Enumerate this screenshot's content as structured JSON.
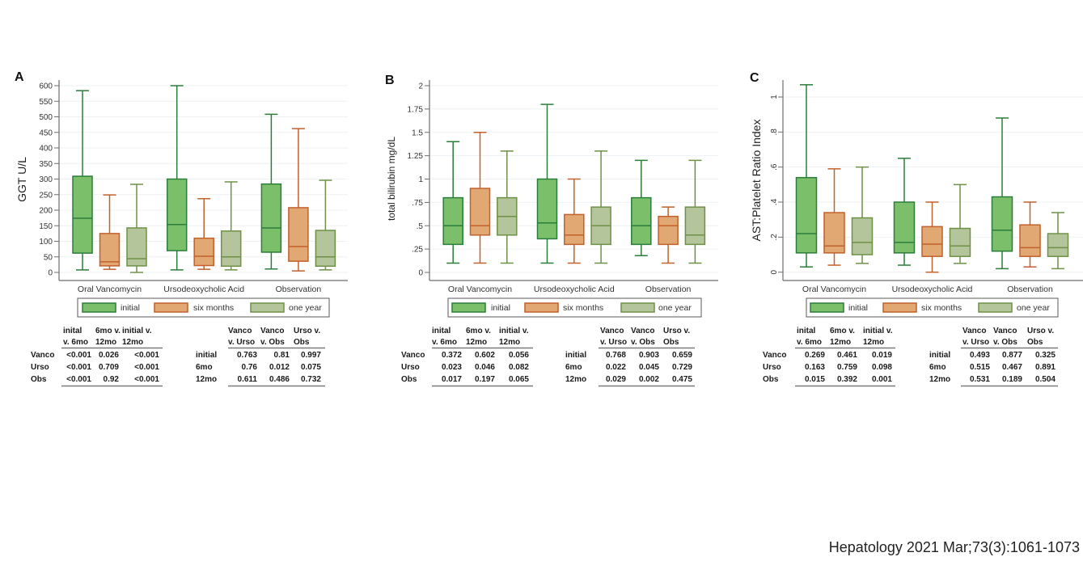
{
  "chart_data": [
    {
      "panel": "A",
      "type": "boxplot",
      "title": "",
      "xlabel": "",
      "ylabel": "GGT U/L",
      "ylim": [
        -26,
        628
      ],
      "grid": true,
      "legend_position": "bottom",
      "y_ticks": [
        0,
        50,
        100,
        150,
        200,
        250,
        300,
        350,
        400,
        450,
        500,
        550,
        600
      ],
      "y_tick_labels": [
        "0",
        "50",
        "100",
        "150",
        "200",
        "250",
        "300",
        "350",
        "400",
        "450",
        "500",
        "550",
        "600"
      ],
      "categories": [
        "Oral Vancomycin",
        "Ursodeoxycholic Acid",
        "Observation"
      ],
      "series": [
        {
          "name": "initial",
          "fill": "#7cbf6b",
          "stroke": "#2b7d3a",
          "boxes": [
            {
              "min": 8,
              "q1": 62,
              "median": 174,
              "q3": 309,
              "max": 584
            },
            {
              "min": 8,
              "q1": 70,
              "median": 154,
              "q3": 300,
              "max": 600
            },
            {
              "min": 11,
              "q1": 65,
              "median": 143,
              "q3": 284,
              "max": 508
            }
          ]
        },
        {
          "name": "six months",
          "fill": "#e2a873",
          "stroke": "#c1612c",
          "boxes": [
            {
              "min": 10,
              "q1": 21,
              "median": 34,
              "q3": 125,
              "max": 249
            },
            {
              "min": 10,
              "q1": 22,
              "median": 52,
              "q3": 110,
              "max": 237
            },
            {
              "min": 5,
              "q1": 36,
              "median": 83,
              "q3": 208,
              "max": 462
            }
          ]
        },
        {
          "name": "one year",
          "fill": "#b4c49b",
          "stroke": "#6f9147",
          "boxes": [
            {
              "min": 0,
              "q1": 21,
              "median": 44,
              "q3": 143,
              "max": 283
            },
            {
              "min": 8,
              "q1": 20,
              "median": 50,
              "q3": 133,
              "max": 291
            },
            {
              "min": 8,
              "q1": 20,
              "median": 50,
              "q3": 135,
              "max": 296
            }
          ]
        }
      ]
    },
    {
      "panel": "B",
      "type": "boxplot",
      "title": "",
      "xlabel": "",
      "ylabel": "total bilirubin mg/dL",
      "ylim": [
        -0.09,
        2.1
      ],
      "grid": true,
      "legend_position": "bottom",
      "y_ticks": [
        0,
        0.25,
        0.5,
        0.75,
        1,
        1.25,
        1.5,
        1.75,
        2
      ],
      "y_tick_labels": [
        "0",
        ".25",
        ".5",
        ".75",
        "1",
        "1.25",
        "1.5",
        "1.75",
        "2"
      ],
      "categories": [
        "Oral Vancomycin",
        "Ursodeoxycholic Acid",
        "Observation"
      ],
      "series": [
        {
          "name": "initial",
          "fill": "#7cbf6b",
          "stroke": "#2b7d3a",
          "boxes": [
            {
              "min": 0.1,
              "q1": 0.3,
              "median": 0.5,
              "q3": 0.8,
              "max": 1.4
            },
            {
              "min": 0.1,
              "q1": 0.36,
              "median": 0.53,
              "q3": 1.0,
              "max": 1.8
            },
            {
              "min": 0.18,
              "q1": 0.3,
              "median": 0.5,
              "q3": 0.8,
              "max": 1.2
            }
          ]
        },
        {
          "name": "six months",
          "fill": "#e2a873",
          "stroke": "#c1612c",
          "boxes": [
            {
              "min": 0.1,
              "q1": 0.4,
              "median": 0.5,
              "q3": 0.9,
              "max": 1.5
            },
            {
              "min": 0.1,
              "q1": 0.3,
              "median": 0.4,
              "q3": 0.62,
              "max": 1.0
            },
            {
              "min": 0.1,
              "q1": 0.3,
              "median": 0.5,
              "q3": 0.6,
              "max": 0.7
            }
          ]
        },
        {
          "name": "one year",
          "fill": "#b4c49b",
          "stroke": "#6f9147",
          "boxes": [
            {
              "min": 0.1,
              "q1": 0.4,
              "median": 0.6,
              "q3": 0.8,
              "max": 1.3
            },
            {
              "min": 0.1,
              "q1": 0.3,
              "median": 0.5,
              "q3": 0.7,
              "max": 1.3
            },
            {
              "min": 0.1,
              "q1": 0.3,
              "median": 0.4,
              "q3": 0.7,
              "max": 1.2
            }
          ]
        }
      ]
    },
    {
      "panel": "C",
      "type": "boxplot",
      "title": "",
      "xlabel": "",
      "ylabel": "AST:Platelet Ratio Index",
      "ylim": [
        -0.05,
        1.12
      ],
      "grid": true,
      "legend_position": "bottom",
      "y_ticks": [
        0,
        0.2,
        0.4,
        0.6,
        0.8,
        1
      ],
      "y_tick_labels": [
        "0",
        ".2",
        ".4",
        ".6",
        ".8",
        "1"
      ],
      "categories": [
        "Oral Vancomycin",
        "Ursodeoxycholic Acid",
        "Observation"
      ],
      "series": [
        {
          "name": "initial",
          "fill": "#7cbf6b",
          "stroke": "#2b7d3a",
          "boxes": [
            {
              "min": 0.03,
              "q1": 0.11,
              "median": 0.22,
              "q3": 0.54,
              "max": 1.07
            },
            {
              "min": 0.04,
              "q1": 0.11,
              "median": 0.17,
              "q3": 0.4,
              "max": 0.65
            },
            {
              "min": 0.02,
              "q1": 0.12,
              "median": 0.24,
              "q3": 0.43,
              "max": 0.88
            }
          ]
        },
        {
          "name": "six months",
          "fill": "#e2a873",
          "stroke": "#c1612c",
          "boxes": [
            {
              "min": 0.04,
              "q1": 0.11,
              "median": 0.15,
              "q3": 0.34,
              "max": 0.59
            },
            {
              "min": 0.0,
              "q1": 0.09,
              "median": 0.16,
              "q3": 0.26,
              "max": 0.4
            },
            {
              "min": 0.03,
              "q1": 0.09,
              "median": 0.14,
              "q3": 0.27,
              "max": 0.4
            }
          ]
        },
        {
          "name": "one year",
          "fill": "#b4c49b",
          "stroke": "#6f9147",
          "boxes": [
            {
              "min": 0.05,
              "q1": 0.1,
              "median": 0.17,
              "q3": 0.31,
              "max": 0.6
            },
            {
              "min": 0.05,
              "q1": 0.09,
              "median": 0.15,
              "q3": 0.25,
              "max": 0.5
            },
            {
              "min": 0.02,
              "q1": 0.09,
              "median": 0.14,
              "q3": 0.22,
              "max": 0.34
            }
          ]
        }
      ]
    }
  ],
  "tables": [
    {
      "panel": "A",
      "within_group": {
        "headers": [
          [
            "inital",
            "v. 6mo"
          ],
          [
            "6mo v.",
            "12mo"
          ],
          [
            "initial v.",
            "12mo"
          ]
        ],
        "rows": [
          {
            "label": "Vanco",
            "values": [
              "<0.001",
              "0.026",
              "<0.001"
            ]
          },
          {
            "label": "Urso",
            "values": [
              "<0.001",
              "0.709",
              "<0.001"
            ]
          },
          {
            "label": "Obs",
            "values": [
              "<0.001",
              "0.92",
              "<0.001"
            ]
          }
        ]
      },
      "between_group": {
        "headers": [
          [
            "Vanco",
            "v. Urso"
          ],
          [
            "Vanco",
            "v. Obs"
          ],
          [
            "Urso v.",
            "Obs"
          ]
        ],
        "rows": [
          {
            "label": "initial",
            "values": [
              "0.763",
              "0.81",
              "0.997"
            ]
          },
          {
            "label": "6mo",
            "values": [
              "0.76",
              "0.012",
              "0.075"
            ]
          },
          {
            "label": "12mo",
            "values": [
              "0.611",
              "0.486",
              "0.732"
            ]
          }
        ]
      }
    },
    {
      "panel": "B",
      "within_group": {
        "headers": [
          [
            "inital",
            "v. 6mo"
          ],
          [
            "6mo v.",
            "12mo"
          ],
          [
            "initial v.",
            "12mo"
          ]
        ],
        "rows": [
          {
            "label": "Vanco",
            "values": [
              "0.372",
              "0.602",
              "0.056"
            ]
          },
          {
            "label": "Urso",
            "values": [
              "0.023",
              "0.046",
              "0.082"
            ]
          },
          {
            "label": "Obs",
            "values": [
              "0.017",
              "0.197",
              "0.065"
            ]
          }
        ]
      },
      "between_group": {
        "headers": [
          [
            "Vanco",
            "v. Urso"
          ],
          [
            "Vanco",
            "v. Obs"
          ],
          [
            "Urso v.",
            "Obs"
          ]
        ],
        "rows": [
          {
            "label": "initial",
            "values": [
              "0.768",
              "0.903",
              "0.659"
            ]
          },
          {
            "label": "6mo",
            "values": [
              "0.022",
              "0.045",
              "0.729"
            ]
          },
          {
            "label": "12mo",
            "values": [
              "0.029",
              "0.002",
              "0.475"
            ]
          }
        ]
      }
    },
    {
      "panel": "C",
      "within_group": {
        "headers": [
          [
            "inital",
            "v. 6mo"
          ],
          [
            "6mo v.",
            "12mo"
          ],
          [
            "initial v.",
            "12mo"
          ]
        ],
        "rows": [
          {
            "label": "Vanco",
            "values": [
              "0.269",
              "0.461",
              "0.019"
            ]
          },
          {
            "label": "Urso",
            "values": [
              "0.163",
              "0.759",
              "0.098"
            ]
          },
          {
            "label": "Obs",
            "values": [
              "0.015",
              "0.392",
              "0.001"
            ]
          }
        ]
      },
      "between_group": {
        "headers": [
          [
            "Vanco",
            "v. Urso"
          ],
          [
            "Vanco",
            "v. Obs"
          ],
          [
            "Urso v.",
            "Obs"
          ]
        ],
        "rows": [
          {
            "label": "initial",
            "values": [
              "0.493",
              "0.877",
              "0.325"
            ]
          },
          {
            "label": "6mo",
            "values": [
              "0.515",
              "0.467",
              "0.891"
            ]
          },
          {
            "label": "12mo",
            "values": [
              "0.531",
              "0.189",
              "0.504"
            ]
          }
        ]
      }
    }
  ],
  "footer": {
    "citation": "Hepatology 2021 Mar;73(3):1061-1073"
  }
}
